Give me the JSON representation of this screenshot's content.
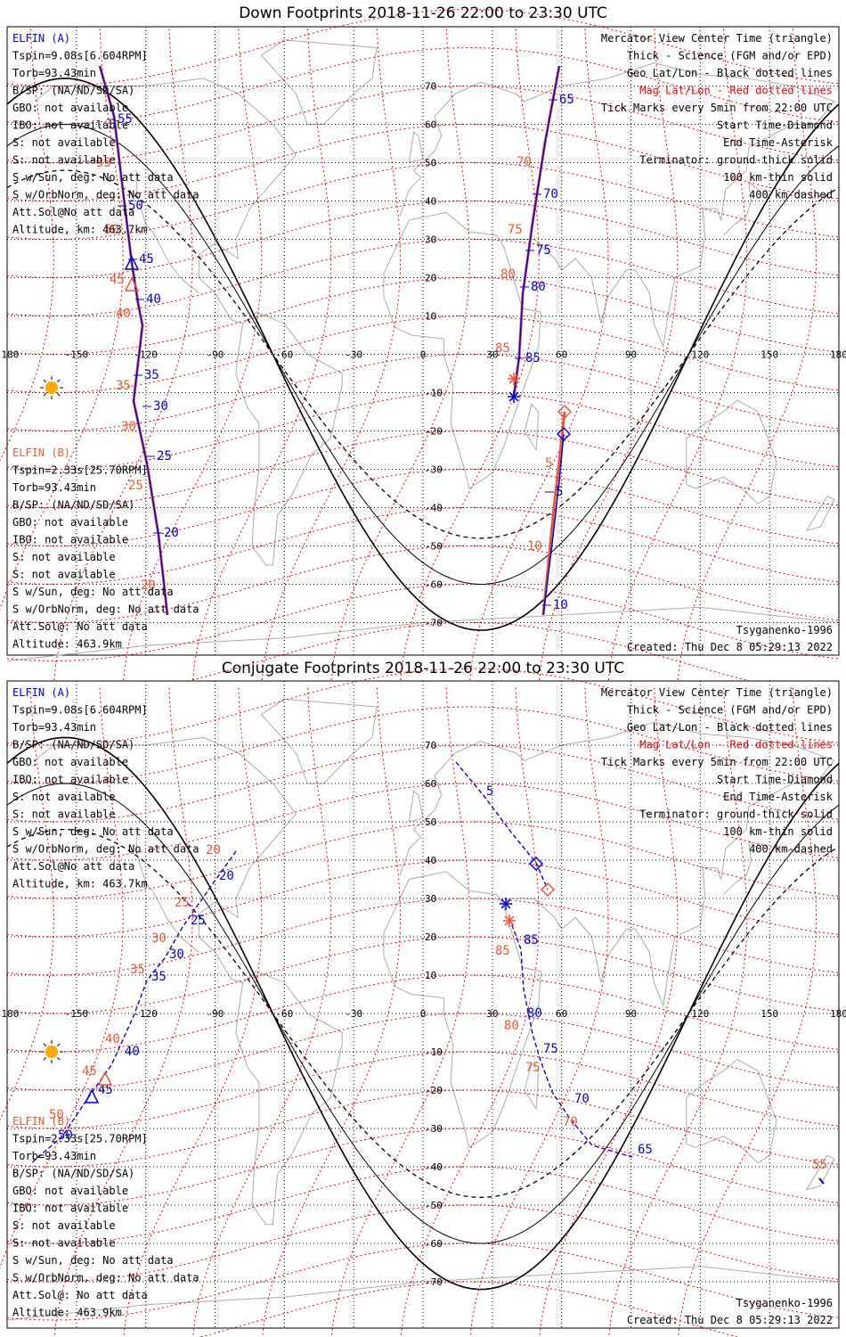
{
  "colors": {
    "elfin_a": "#0000dd",
    "elfin_b": "#ee5533",
    "mag": "#ee0000",
    "geo": "#000000",
    "coast": "#aaaaaa",
    "sun": "#ffaa00"
  },
  "panels": [
    {
      "id": "down",
      "title": "Down Footprints 2018-11-26 22:00 to 23:30 UTC",
      "left_lines": [
        {
          "text": "ELFIN (A)",
          "color": "blue"
        },
        {
          "text": "Tspin=9.08s[6.604RPM]"
        },
        {
          "text": "Torb=93.43min"
        },
        {
          "text": "B/SP: (NA/ND/SD/SA)"
        },
        {
          "text": "GBO: not available"
        },
        {
          "text": "IBO: not available"
        },
        {
          "text": "S: not available"
        },
        {
          "text": "S: not available"
        },
        {
          "text": "S w/Sun, deg: No att data"
        },
        {
          "text": "S w/OrbNorm, deg: No att data"
        },
        {
          "text": "Att.Sol@No att data"
        },
        {
          "text": "Altitude, km: 463.7km"
        }
      ],
      "left_lines_b": [
        {
          "text": "ELFIN (B)",
          "color": "orange"
        },
        {
          "text": "Tspin=2.33s[25.70RPM]"
        },
        {
          "text": "Torb=93.43min"
        },
        {
          "text": "B/SP: (NA/ND/SD/SA)"
        },
        {
          "text": "GBO: not available"
        },
        {
          "text": "IBO: not available"
        },
        {
          "text": "S: not available"
        },
        {
          "text": "S: not available"
        },
        {
          "text": "S w/Sun, deg: No att data"
        },
        {
          "text": "S w/OrbNorm, deg: No att data"
        },
        {
          "text": "Att.Sol@: No att data"
        },
        {
          "text": "Altitude: 463.9km"
        }
      ],
      "right_lines": [
        {
          "text": "Mercator View Center Time (triangle)"
        },
        {
          "text": "Thick - Science (FGM and/or EPD)"
        },
        {
          "text": "Geo Lat/Lon - Black dotted lines"
        },
        {
          "text": "Mag Lat/Lon - Red dotted lines",
          "color": "red"
        },
        {
          "text": "Tick Marks every 5min from 22:00 UTC"
        },
        {
          "text": "Start Time-Diamond"
        },
        {
          "text": "End Time-Asterisk"
        },
        {
          "text": "Terminator: ground-thick solid"
        },
        {
          "text": "100 km-thin solid"
        },
        {
          "text": "400 km-dashed"
        }
      ],
      "footer_right_1": "Tsyganenko-1996",
      "footer_right_2": "Created: Thu Dec  8 05:29:13 2022",
      "lon_labels": [
        "-180",
        "-150",
        "-120",
        "-90",
        "-60",
        "-30",
        "0",
        "30",
        "60",
        "90",
        "120",
        "150",
        "180"
      ],
      "lat_labels": [
        "70",
        "60",
        "50",
        "40",
        "30",
        "20",
        "10",
        "0",
        "-10",
        "-20",
        "-30",
        "-40",
        "-50",
        "-60",
        "-70"
      ],
      "track_a_labels": [
        "55",
        "50",
        "45",
        "40",
        "35",
        "30",
        "25",
        "20",
        "65",
        "70",
        "75",
        "80",
        "85",
        "5",
        "10"
      ],
      "track_b_labels": [
        "55",
        "50",
        "45",
        "40",
        "35",
        "30",
        "25",
        "20",
        "70",
        "75",
        "80",
        "85",
        "5",
        "10"
      ]
    },
    {
      "id": "conj",
      "title": "Conjugate Footprints 2018-11-26 22:00 to 23:30 UTC",
      "left_lines": [
        {
          "text": "ELFIN (A)",
          "color": "blue"
        },
        {
          "text": "Tspin=9.08s[6.604RPM]"
        },
        {
          "text": "Torb=93.43min"
        },
        {
          "text": "B/SP: (NA/ND/SD/SA)"
        },
        {
          "text": "GBO: not available"
        },
        {
          "text": "IBO: not available"
        },
        {
          "text": "S: not available"
        },
        {
          "text": "S: not available"
        },
        {
          "text": "S w/Sun, deg: No att data"
        },
        {
          "text": "S w/OrbNorm, deg: No att data"
        },
        {
          "text": "Att.Sol@No att data"
        },
        {
          "text": "Altitude, km: 463.7km"
        }
      ],
      "left_lines_b": [
        {
          "text": "ELFIN (B)",
          "color": "orange"
        },
        {
          "text": "Tspin=2.33s[25.70RPM]"
        },
        {
          "text": "Torb=93.43min"
        },
        {
          "text": "B/SP: (NA/ND/SD/SA)"
        },
        {
          "text": "GBO: not available"
        },
        {
          "text": "IBO: not available"
        },
        {
          "text": "S: not available"
        },
        {
          "text": "S: not available"
        },
        {
          "text": "S w/Sun, deg: No att data"
        },
        {
          "text": "S w/OrbNorm, deg: No att data"
        },
        {
          "text": "Att.Sol@: No att data"
        },
        {
          "text": "Altitude: 463.9km"
        }
      ],
      "right_lines": [
        {
          "text": "Mercator View Center Time (triangle)"
        },
        {
          "text": "Thick - Science (FGM and/or EPD)"
        },
        {
          "text": "Geo Lat/Lon - Black dotted lines"
        },
        {
          "text": "Mag Lat/Lon - Red dotted lines",
          "color": "red"
        },
        {
          "text": "Tick Marks every 5min from 22:00 UTC"
        },
        {
          "text": "Start Time-Diamond"
        },
        {
          "text": "End Time-Asterisk"
        },
        {
          "text": "Terminator: ground-thick solid"
        },
        {
          "text": "100 km-thin solid"
        },
        {
          "text": "400 km-dashed"
        }
      ],
      "footer_right_1": "Tsyganenko-1996",
      "footer_right_2": "Created: Thu Dec  8 05:29:13 2022",
      "lon_labels": [
        "-180",
        "-150",
        "-120",
        "-90",
        "-60",
        "-30",
        "0",
        "30",
        "60",
        "90",
        "120",
        "150",
        "180"
      ],
      "lat_labels": [
        "70",
        "60",
        "50",
        "40",
        "30",
        "20",
        "10",
        "0",
        "-10",
        "-20",
        "-30",
        "-40",
        "-50",
        "-60",
        "-70"
      ],
      "track_a_labels": [
        "20",
        "25",
        "30",
        "35",
        "40",
        "45",
        "50",
        "5",
        "85",
        "80",
        "75",
        "70",
        "65"
      ],
      "track_b_labels": [
        "20",
        "25",
        "30",
        "35",
        "40",
        "45",
        "50",
        "85",
        "80",
        "75",
        "70",
        "55"
      ]
    }
  ]
}
